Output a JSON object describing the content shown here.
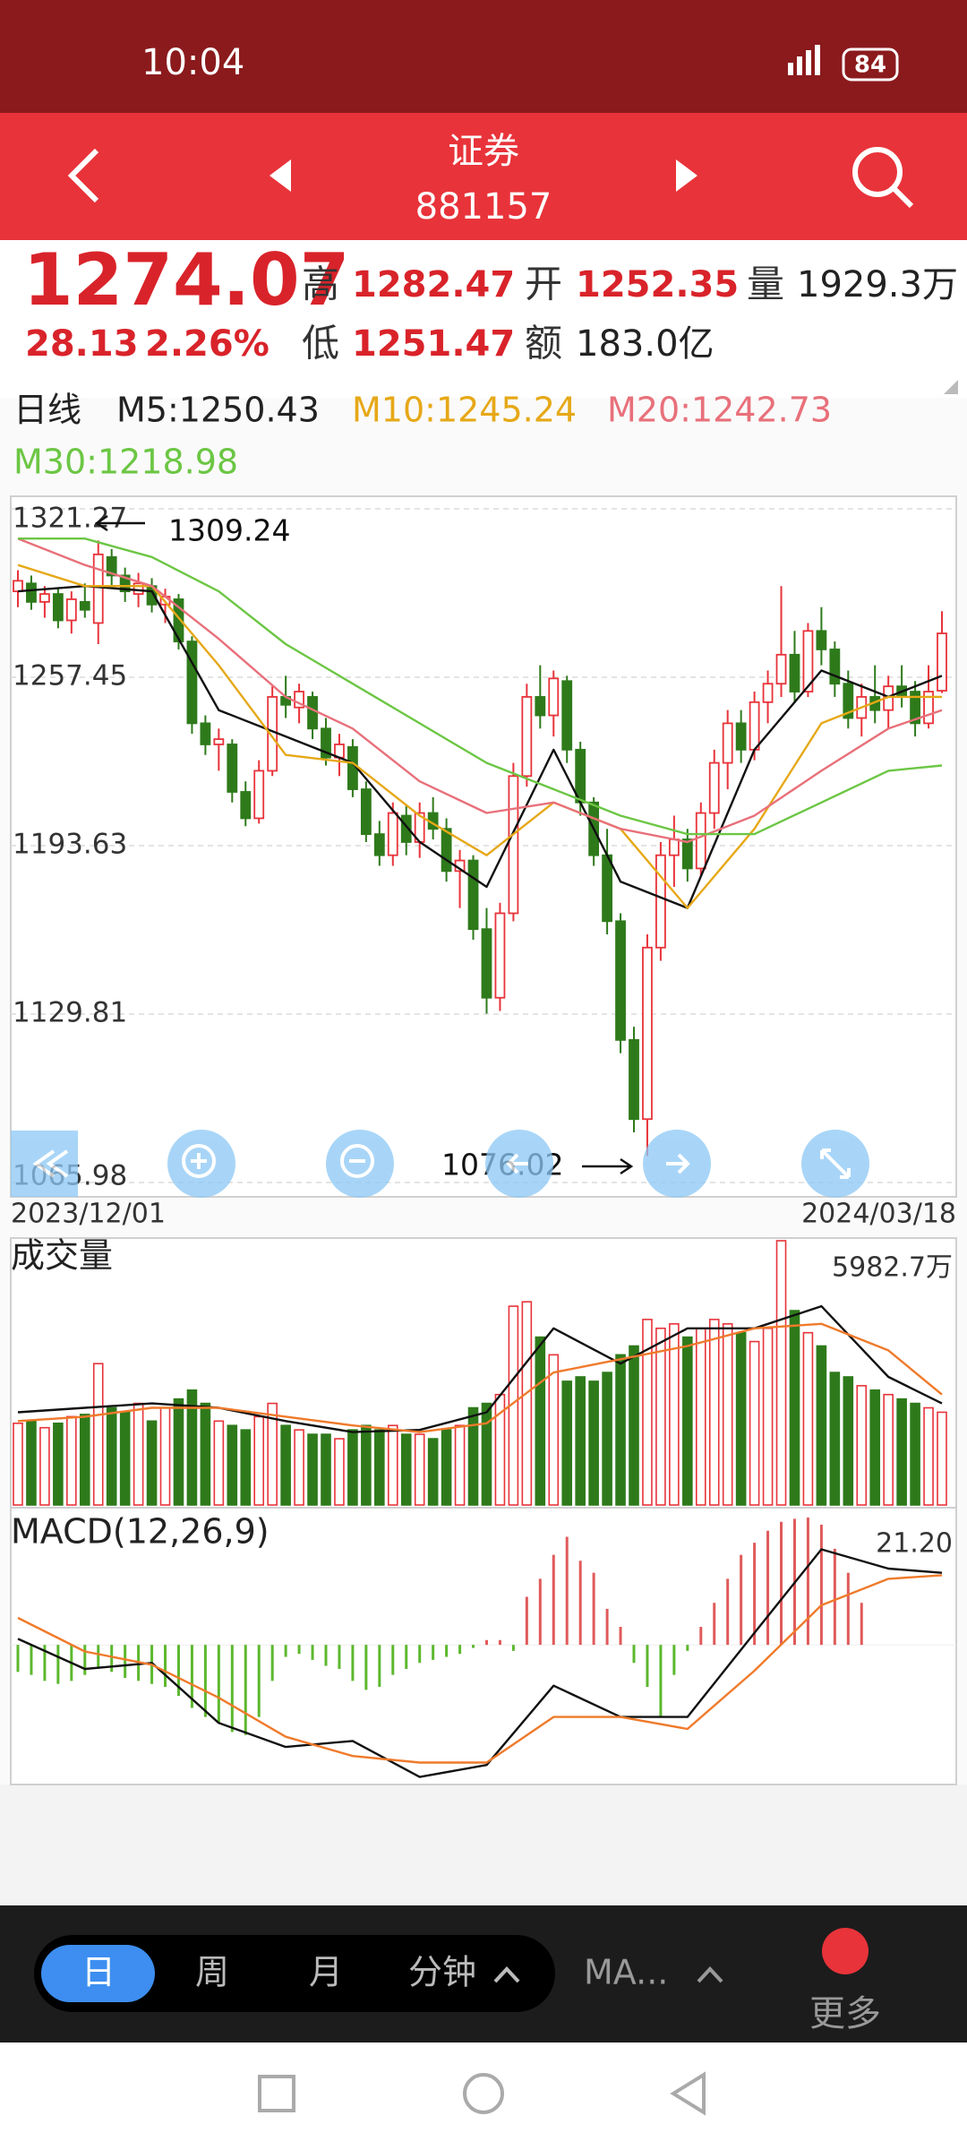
{
  "status_bar": {
    "time": "10:04",
    "battery": "84"
  },
  "header": {
    "title": "证券",
    "code": "881157"
  },
  "quote": {
    "price": "1274.07",
    "change": "28.13",
    "change_pct": "2.26%",
    "fields": [
      {
        "label": "高",
        "value": "1282.47"
      },
      {
        "label": "开",
        "value": "1252.35"
      },
      {
        "label": "量",
        "value": "1929.3万"
      },
      {
        "label": "低",
        "value": "1251.47"
      },
      {
        "label": "额",
        "value": "183.0亿"
      }
    ]
  },
  "chart_data": [
    {
      "type": "candlestick",
      "period_label": "日线",
      "x_labels": [
        "2023/12/01",
        "2024/03/18"
      ],
      "high_label": "1309.24",
      "low_label": "1076.02",
      "up_color": "#e8333a",
      "down_color": "#2e7a1b",
      "xlim": [
        0,
        69
      ],
      "ylim": [
        1065.98,
        1321.27
      ],
      "yticks": [
        1321.27,
        1257.45,
        1193.63,
        1129.81,
        1065.98
      ],
      "grid": true,
      "candles": [
        [
          1290,
          1298,
          1284,
          1294
        ],
        [
          1293,
          1296,
          1283,
          1286
        ],
        [
          1286,
          1292,
          1280,
          1289
        ],
        [
          1289,
          1291,
          1276,
          1279
        ],
        [
          1279,
          1290,
          1274,
          1287
        ],
        [
          1286,
          1293,
          1280,
          1283
        ],
        [
          1278,
          1309.24,
          1270,
          1304
        ],
        [
          1303,
          1306,
          1292,
          1296
        ],
        [
          1296,
          1299,
          1286,
          1290
        ],
        [
          1289,
          1297,
          1284,
          1293
        ],
        [
          1292,
          1295,
          1282,
          1285
        ],
        [
          1285,
          1291,
          1278,
          1288
        ],
        [
          1287,
          1289,
          1268,
          1271
        ],
        [
          1271,
          1273,
          1236,
          1240
        ],
        [
          1240,
          1243,
          1228,
          1232
        ],
        [
          1232,
          1238,
          1222,
          1234
        ],
        [
          1232,
          1234,
          1210,
          1214
        ],
        [
          1214,
          1218,
          1201,
          1204
        ],
        [
          1204,
          1226,
          1202,
          1222
        ],
        [
          1222,
          1254,
          1220,
          1250
        ],
        [
          1250,
          1258,
          1242,
          1247
        ],
        [
          1246,
          1255,
          1240,
          1252
        ],
        [
          1250,
          1252,
          1234,
          1238
        ],
        [
          1238,
          1242,
          1224,
          1227
        ],
        [
          1227,
          1236,
          1220,
          1232
        ],
        [
          1231,
          1234,
          1212,
          1215
        ],
        [
          1215,
          1218,
          1195,
          1198
        ],
        [
          1198,
          1203,
          1186,
          1190
        ],
        [
          1190,
          1210,
          1186,
          1206
        ],
        [
          1205,
          1209,
          1190,
          1195
        ],
        [
          1195,
          1210,
          1189,
          1206
        ],
        [
          1206,
          1212,
          1196,
          1200
        ],
        [
          1200,
          1204,
          1180,
          1184
        ],
        [
          1184,
          1192,
          1170,
          1188
        ],
        [
          1188,
          1190,
          1158,
          1162
        ],
        [
          1162,
          1170,
          1130,
          1136
        ],
        [
          1136,
          1172,
          1131,
          1168
        ],
        [
          1168,
          1225,
          1165,
          1220
        ],
        [
          1220,
          1255,
          1216,
          1250
        ],
        [
          1250,
          1262,
          1238,
          1243
        ],
        [
          1243,
          1260,
          1235,
          1257
        ],
        [
          1256,
          1258,
          1225,
          1230
        ],
        [
          1230,
          1233,
          1205,
          1210
        ],
        [
          1210,
          1212,
          1186,
          1190
        ],
        [
          1190,
          1200,
          1160,
          1165
        ],
        [
          1165,
          1168,
          1115,
          1120
        ],
        [
          1120,
          1125,
          1085,
          1090
        ],
        [
          1090,
          1160,
          1076.02,
          1155
        ],
        [
          1155,
          1195,
          1150,
          1190
        ],
        [
          1190,
          1205,
          1178,
          1196
        ],
        [
          1196,
          1200,
          1180,
          1185
        ],
        [
          1185,
          1210,
          1182,
          1206
        ],
        [
          1206,
          1230,
          1200,
          1225
        ],
        [
          1225,
          1245,
          1215,
          1240
        ],
        [
          1240,
          1245,
          1225,
          1230
        ],
        [
          1230,
          1252,
          1226,
          1248
        ],
        [
          1248,
          1260,
          1240,
          1255
        ],
        [
          1255,
          1292,
          1250,
          1266
        ],
        [
          1266,
          1275,
          1248,
          1252
        ],
        [
          1252,
          1278,
          1250,
          1275
        ],
        [
          1275,
          1284,
          1262,
          1268
        ],
        [
          1268,
          1271,
          1250,
          1255
        ],
        [
          1255,
          1260,
          1238,
          1242
        ],
        [
          1242,
          1255,
          1235,
          1250
        ],
        [
          1250,
          1262,
          1240,
          1245
        ],
        [
          1245,
          1258,
          1238,
          1254
        ],
        [
          1254,
          1262,
          1246,
          1250
        ],
        [
          1252,
          1256,
          1235,
          1240
        ],
        [
          1240,
          1262,
          1238,
          1252
        ],
        [
          1252.35,
          1282.47,
          1251.47,
          1274.07
        ]
      ],
      "series": [
        {
          "name": "M5:1250.43",
          "color": "#111111",
          "x": [
            0,
            5,
            10,
            15,
            20,
            25,
            30,
            35,
            40,
            45,
            50,
            55,
            60,
            65,
            69
          ],
          "values": [
            1290,
            1292,
            1290,
            1245,
            1235,
            1225,
            1195,
            1178,
            1230,
            1180,
            1170,
            1230,
            1260,
            1250,
            1258
          ]
        },
        {
          "name": "M10:1245.24",
          "color": "#e6a817",
          "x": [
            0,
            5,
            10,
            15,
            20,
            25,
            30,
            35,
            40,
            45,
            50,
            55,
            60,
            65,
            69
          ],
          "values": [
            1300,
            1292,
            1292,
            1262,
            1228,
            1225,
            1205,
            1190,
            1210,
            1200,
            1170,
            1200,
            1240,
            1250,
            1250
          ]
        },
        {
          "name": "M20:1242.73",
          "color": "#e8707a",
          "x": [
            0,
            5,
            10,
            15,
            20,
            25,
            30,
            35,
            40,
            45,
            50,
            55,
            60,
            65,
            69
          ],
          "values": [
            1310,
            1300,
            1292,
            1272,
            1250,
            1238,
            1218,
            1206,
            1210,
            1200,
            1195,
            1205,
            1222,
            1238,
            1245
          ]
        },
        {
          "name": "M30:1218.98",
          "color": "#6cc644",
          "x": [
            0,
            5,
            10,
            15,
            20,
            25,
            30,
            35,
            40,
            45,
            50,
            55,
            60,
            65,
            69
          ],
          "values": [
            1310,
            1310,
            1303,
            1290,
            1270,
            1255,
            1240,
            1225,
            1215,
            1205,
            1198,
            1198,
            1210,
            1222,
            1224
          ]
        }
      ]
    },
    {
      "type": "volume",
      "title": "成交量",
      "ylim": [
        0,
        5982.7
      ],
      "yticks": [
        {
          "value": 5982.7,
          "label": "5982.7万"
        }
      ],
      "values": [
        1850,
        1900,
        1750,
        1850,
        2000,
        2050,
        3200,
        2200,
        2100,
        2300,
        1900,
        2200,
        2400,
        2600,
        2300,
        1900,
        1800,
        1700,
        2000,
        2300,
        1800,
        1700,
        1600,
        1600,
        1500,
        1700,
        1800,
        1700,
        1800,
        1600,
        1600,
        1500,
        1700,
        1800,
        2200,
        2300,
        2500,
        4500,
        4600,
        3800,
        3400,
        2800,
        2900,
        2800,
        3000,
        3400,
        3600,
        4200,
        4000,
        4100,
        3800,
        4000,
        4200,
        4100,
        3900,
        3700,
        4000,
        5982.7,
        4400,
        3900,
        3600,
        3000,
        2900,
        2700,
        2600,
        2500,
        2400,
        2300,
        2200,
        2100
      ],
      "series": [
        {
          "color": "#111111",
          "x": [
            0,
            5,
            10,
            15,
            20,
            25,
            30,
            35,
            40,
            45,
            50,
            55,
            60,
            65,
            69
          ],
          "values": [
            2100,
            2200,
            2300,
            2200,
            1900,
            1650,
            1700,
            2100,
            4000,
            3200,
            4000,
            4000,
            4500,
            2900,
            2300
          ]
        },
        {
          "color": "#ef7a2b",
          "x": [
            0,
            5,
            10,
            15,
            20,
            25,
            30,
            35,
            40,
            45,
            50,
            55,
            60,
            65,
            69
          ],
          "values": [
            1900,
            2000,
            2200,
            2200,
            2000,
            1800,
            1650,
            1850,
            3000,
            3300,
            3600,
            4000,
            4100,
            3500,
            2500
          ]
        }
      ]
    },
    {
      "type": "macd",
      "title": "MACD(12,26,9)",
      "up_color": "#e05a5a",
      "down_color": "#5cb82e",
      "ylim": [
        -22.8,
        21.2
      ],
      "yticks": [
        {
          "value": 21.2,
          "label": "21.20"
        }
      ],
      "values": [
        -4.5,
        -5,
        -6,
        -6.5,
        -6,
        -5,
        -4,
        -4.5,
        -5.5,
        -6,
        -6.5,
        -7,
        -8.5,
        -10.5,
        -12,
        -13,
        -14.5,
        -15,
        -12,
        -6,
        -2,
        -1.5,
        -2.5,
        -3.5,
        -4,
        -6,
        -7.5,
        -7,
        -5,
        -4,
        -3,
        -2.5,
        -2,
        -1.5,
        -0.5,
        0.8,
        0.8,
        -1,
        8,
        11,
        15,
        18,
        14,
        12,
        6,
        3,
        -3,
        -7,
        -12,
        -5,
        -1,
        3,
        7,
        11,
        15,
        17,
        19,
        20.5,
        21,
        21.2,
        20,
        16,
        12,
        7,
        0,
        0,
        0,
        0,
        0,
        0
      ],
      "series": [
        {
          "color": "#111111",
          "x": [
            0,
            5,
            10,
            15,
            20,
            25,
            30,
            35,
            40,
            45,
            50,
            55,
            60,
            65,
            69
          ],
          "values": [
            1,
            -4,
            -3,
            -13,
            -17,
            -16,
            -22,
            -20,
            -6.8,
            -12,
            -12,
            2,
            15.9,
            12.7,
            12
          ]
        },
        {
          "color": "#ef7a2b",
          "x": [
            0,
            5,
            10,
            15,
            20,
            25,
            30,
            35,
            40,
            45,
            50,
            55,
            60,
            65,
            69
          ],
          "values": [
            4.5,
            -1.1,
            -3.3,
            -8.8,
            -15.3,
            -18.5,
            -19.6,
            -19.6,
            -12,
            -12,
            -14,
            -4.3,
            6.6,
            11,
            11.6
          ]
        }
      ]
    }
  ],
  "toolbar": {
    "tabs": [
      "日",
      "周",
      "月",
      "分钟"
    ],
    "ma": "MA...",
    "more": "更多"
  }
}
